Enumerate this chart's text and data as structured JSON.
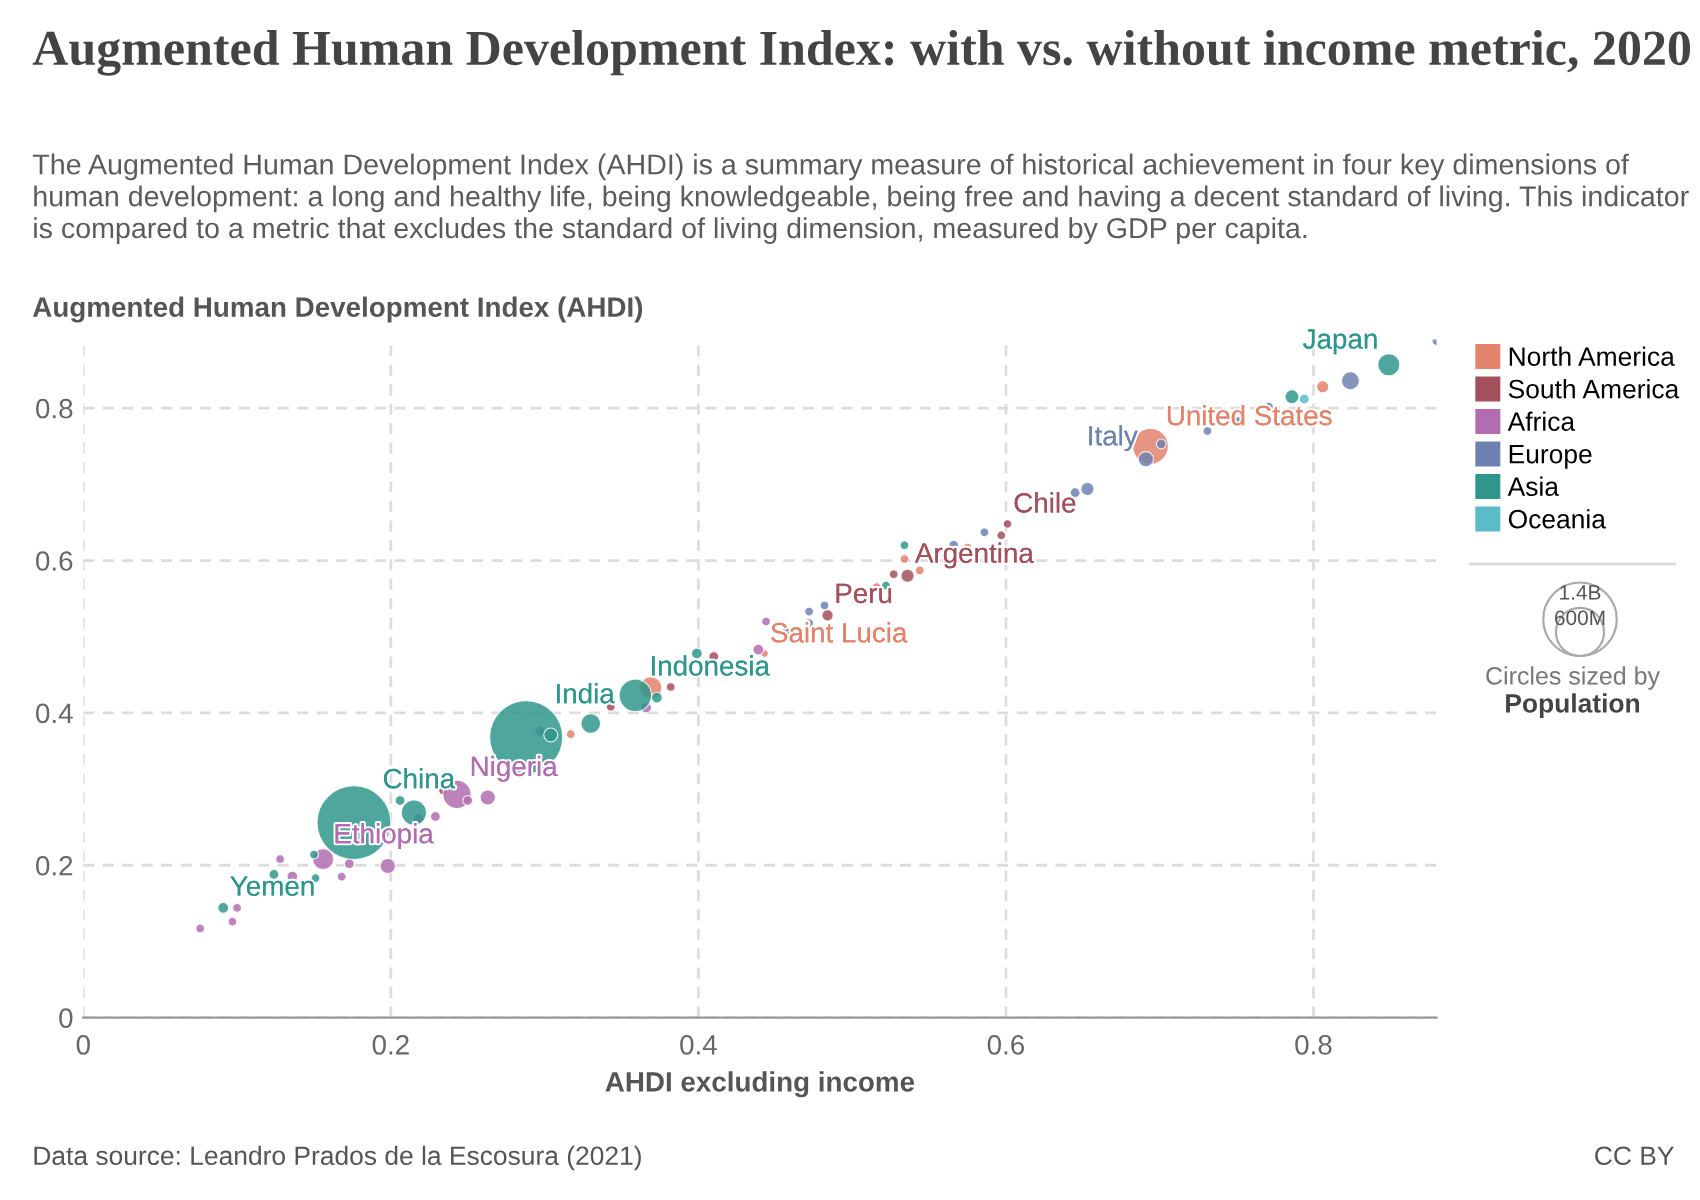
{
  "chart_data": {
    "type": "bubble",
    "title": "Augmented Human Development Index: with vs. without income metric, 2020",
    "subtitle": "The Augmented Human Development Index (AHDI) is a summary measure of historical achievement in four key dimensions of human development: a long and healthy life, being knowledgeable, being free and having a decent standard of living. This indicator is compared to a metric that excludes the standard of living dimension, measured by GDP per capita.",
    "xlabel": "AHDI excluding income",
    "ylabel": "Augmented Human Development Index (AHDI)",
    "xlim": [
      0,
      0.88
    ],
    "ylim": [
      0,
      0.89
    ],
    "xticks": [
      0,
      0.2,
      0.4,
      0.6,
      0.8
    ],
    "yticks": [
      0,
      0.2,
      0.4,
      0.6,
      0.8
    ],
    "grid": true,
    "legend": "right",
    "size_legend": [
      {
        "value": 1400,
        "label": "1.4B"
      },
      {
        "value": 600,
        "label": "600M"
      }
    ],
    "series": [
      {
        "name": "North America",
        "color": "#e3836c",
        "x": [
          0.694,
          0.369,
          0.443,
          0.516,
          0.534,
          0.575,
          0.544,
          0.317,
          0.806
        ],
        "values": [
          0.75,
          0.433,
          0.478,
          0.565,
          0.602,
          0.617,
          0.587,
          0.372,
          0.828
        ],
        "sizes": [
          331,
          128,
          15,
          20,
          20,
          20,
          20,
          20,
          38
        ]
      },
      {
        "name": "South America",
        "color": "#a2505c",
        "x": [
          0.536,
          0.601,
          0.484,
          0.41,
          0.527,
          0.597,
          0.382,
          0.343,
          0.234
        ],
        "values": [
          0.58,
          0.648,
          0.528,
          0.474,
          0.582,
          0.633,
          0.434,
          0.408,
          0.298
        ],
        "sizes": [
          45,
          19,
          33,
          25,
          20,
          20,
          20,
          20,
          20
        ]
      },
      {
        "name": "Africa",
        "color": "#b16db0",
        "x": [
          0.243,
          0.156,
          0.198,
          0.136,
          0.076,
          0.097,
          0.1,
          0.128,
          0.168,
          0.173,
          0.263,
          0.218,
          0.229,
          0.25,
          0.366,
          0.439,
          0.444
        ],
        "values": [
          0.293,
          0.208,
          0.199,
          0.185,
          0.117,
          0.126,
          0.144,
          0.208,
          0.185,
          0.202,
          0.289,
          0.261,
          0.264,
          0.285,
          0.407,
          0.483,
          0.52
        ],
        "sizes": [
          206,
          115,
          60,
          30,
          20,
          20,
          20,
          20,
          20,
          25,
          60,
          30,
          25,
          25,
          30,
          30,
          20
        ]
      },
      {
        "name": "Europe",
        "color": "#6d82b0",
        "x": [
          0.691,
          0.701,
          0.653,
          0.645,
          0.731,
          0.751,
          0.771,
          0.566,
          0.586,
          0.472,
          0.472,
          0.482,
          0.297,
          0.457,
          0.824,
          0.88
        ],
        "values": [
          0.733,
          0.753,
          0.694,
          0.689,
          0.77,
          0.783,
          0.802,
          0.62,
          0.637,
          0.533,
          0.518,
          0.541,
          0.376,
          0.507,
          0.836,
          0.888
        ],
        "sizes": [
          60,
          25,
          45,
          25,
          20,
          20,
          20,
          25,
          20,
          20,
          20,
          20,
          25,
          20,
          83,
          20
        ]
      },
      {
        "name": "Asia",
        "color": "#2f968c",
        "x": [
          0.176,
          0.288,
          0.359,
          0.849,
          0.091,
          0.124,
          0.151,
          0.15,
          0.215,
          0.206,
          0.33,
          0.304,
          0.373,
          0.399,
          0.534,
          0.522,
          0.786
        ],
        "values": [
          0.256,
          0.368,
          0.423,
          0.857,
          0.144,
          0.188,
          0.183,
          0.214,
          0.269,
          0.285,
          0.386,
          0.371,
          0.42,
          0.478,
          0.62,
          0.567,
          0.815
        ],
        "sizes": [
          1411,
          1380,
          274,
          126,
          30,
          25,
          20,
          20,
          165,
          25,
          100,
          50,
          30,
          30,
          20,
          20,
          50
        ]
      },
      {
        "name": "Oceania",
        "color": "#5bbcc8",
        "x": [
          0.794
        ],
        "values": [
          0.812
        ],
        "sizes": [
          25
        ]
      }
    ],
    "annotations": [
      {
        "text": "China",
        "x": 0.176,
        "y": 0.256
      },
      {
        "text": "India",
        "x": 0.288,
        "y": 0.368
      },
      {
        "text": "Indonesia",
        "x": 0.359,
        "y": 0.423
      },
      {
        "text": "Japan",
        "x": 0.849,
        "y": 0.857
      },
      {
        "text": "Yemen",
        "x": 0.091,
        "y": 0.144
      },
      {
        "text": "United States",
        "x": 0.694,
        "y": 0.75
      },
      {
        "text": "Saint Lucia",
        "x": 0.443,
        "y": 0.478
      },
      {
        "text": "Argentina",
        "x": 0.536,
        "y": 0.58
      },
      {
        "text": "Chile",
        "x": 0.601,
        "y": 0.648
      },
      {
        "text": "Peru",
        "x": 0.484,
        "y": 0.528
      },
      {
        "text": "Nigeria",
        "x": 0.243,
        "y": 0.293
      },
      {
        "text": "Ethiopia",
        "x": 0.156,
        "y": 0.208
      },
      {
        "text": "Italy",
        "x": 0.691,
        "y": 0.733
      },
      "Data source: Leandro Prados de la Escosura (2021)",
      "CC BY",
      "Circles sized by",
      "Population"
    ]
  }
}
